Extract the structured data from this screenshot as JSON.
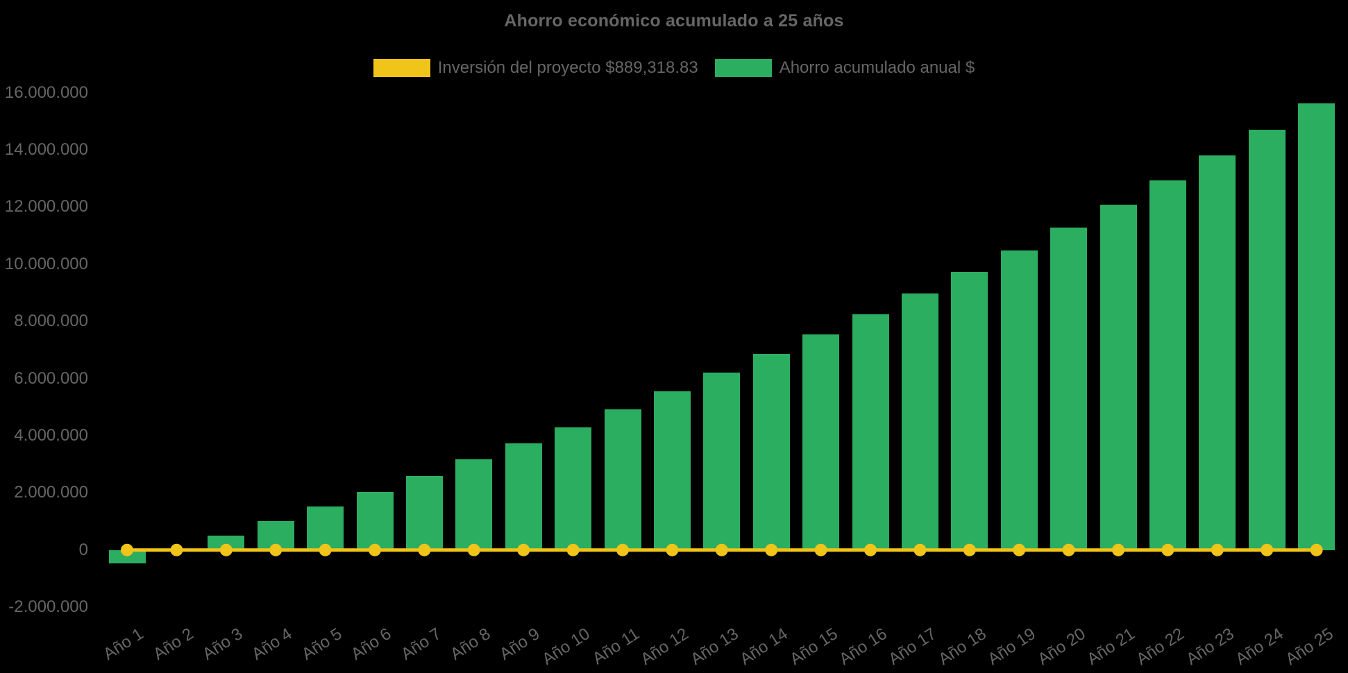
{
  "title": "Ahorro económico acumulado a 25 años",
  "colors": {
    "background": "#000000",
    "investment_yellow": "#F0C419",
    "savings_green": "#2BAE60",
    "text_gray": "#666666"
  },
  "chart_data": {
    "type": "bar",
    "title": "Ahorro económico acumulado a 25 años",
    "xlabel": "",
    "ylabel": "",
    "legend_position": "top",
    "grid": false,
    "background": "#000000",
    "ylim": [
      -2000000,
      16000000
    ],
    "ytick_step": 2000000,
    "yticks": [
      {
        "label": "16.000.000",
        "value": 16000000
      },
      {
        "label": "14.000.000",
        "value": 14000000
      },
      {
        "label": "12.000.000",
        "value": 12000000
      },
      {
        "label": "10.000.000",
        "value": 10000000
      },
      {
        "label": "8.000.000",
        "value": 8000000
      },
      {
        "label": "6.000.000",
        "value": 6000000
      },
      {
        "label": "4.000.000",
        "value": 4000000
      },
      {
        "label": "2.000.000",
        "value": 2000000
      },
      {
        "label": "0",
        "value": 0
      },
      {
        "label": "-2.000.000",
        "value": -2000000
      }
    ],
    "categories": [
      "Año 1",
      "Año 2",
      "Año 3",
      "Año 4",
      "Año 5",
      "Año 6",
      "Año 7",
      "Año 8",
      "Año 9",
      "Año 10",
      "Año 11",
      "Año 12",
      "Año 13",
      "Año 14",
      "Año 15",
      "Año 16",
      "Año 17",
      "Año 18",
      "Año 19",
      "Año 20",
      "Año 21",
      "Año 22",
      "Año 23",
      "Año 24",
      "Año 25"
    ],
    "series": [
      {
        "name": "Inversión del proyecto $889,318.83",
        "type": "line",
        "color": "#F0C419",
        "marker": "circle",
        "values": [
          0,
          0,
          0,
          0,
          0,
          0,
          0,
          0,
          0,
          0,
          0,
          0,
          0,
          0,
          0,
          0,
          0,
          0,
          0,
          0,
          0,
          0,
          0,
          0,
          0
        ]
      },
      {
        "name": "Ahorro acumulado anual $",
        "type": "bar",
        "color": "#2BAE60",
        "values": [
          -460000,
          30000,
          510000,
          1020000,
          1530000,
          2020000,
          2600000,
          3180000,
          3740000,
          4300000,
          4910000,
          5540000,
          6200000,
          6850000,
          7530000,
          8240000,
          8970000,
          9720000,
          10470000,
          11280000,
          12080000,
          12930000,
          13800000,
          14700000,
          15630000
        ]
      }
    ]
  }
}
